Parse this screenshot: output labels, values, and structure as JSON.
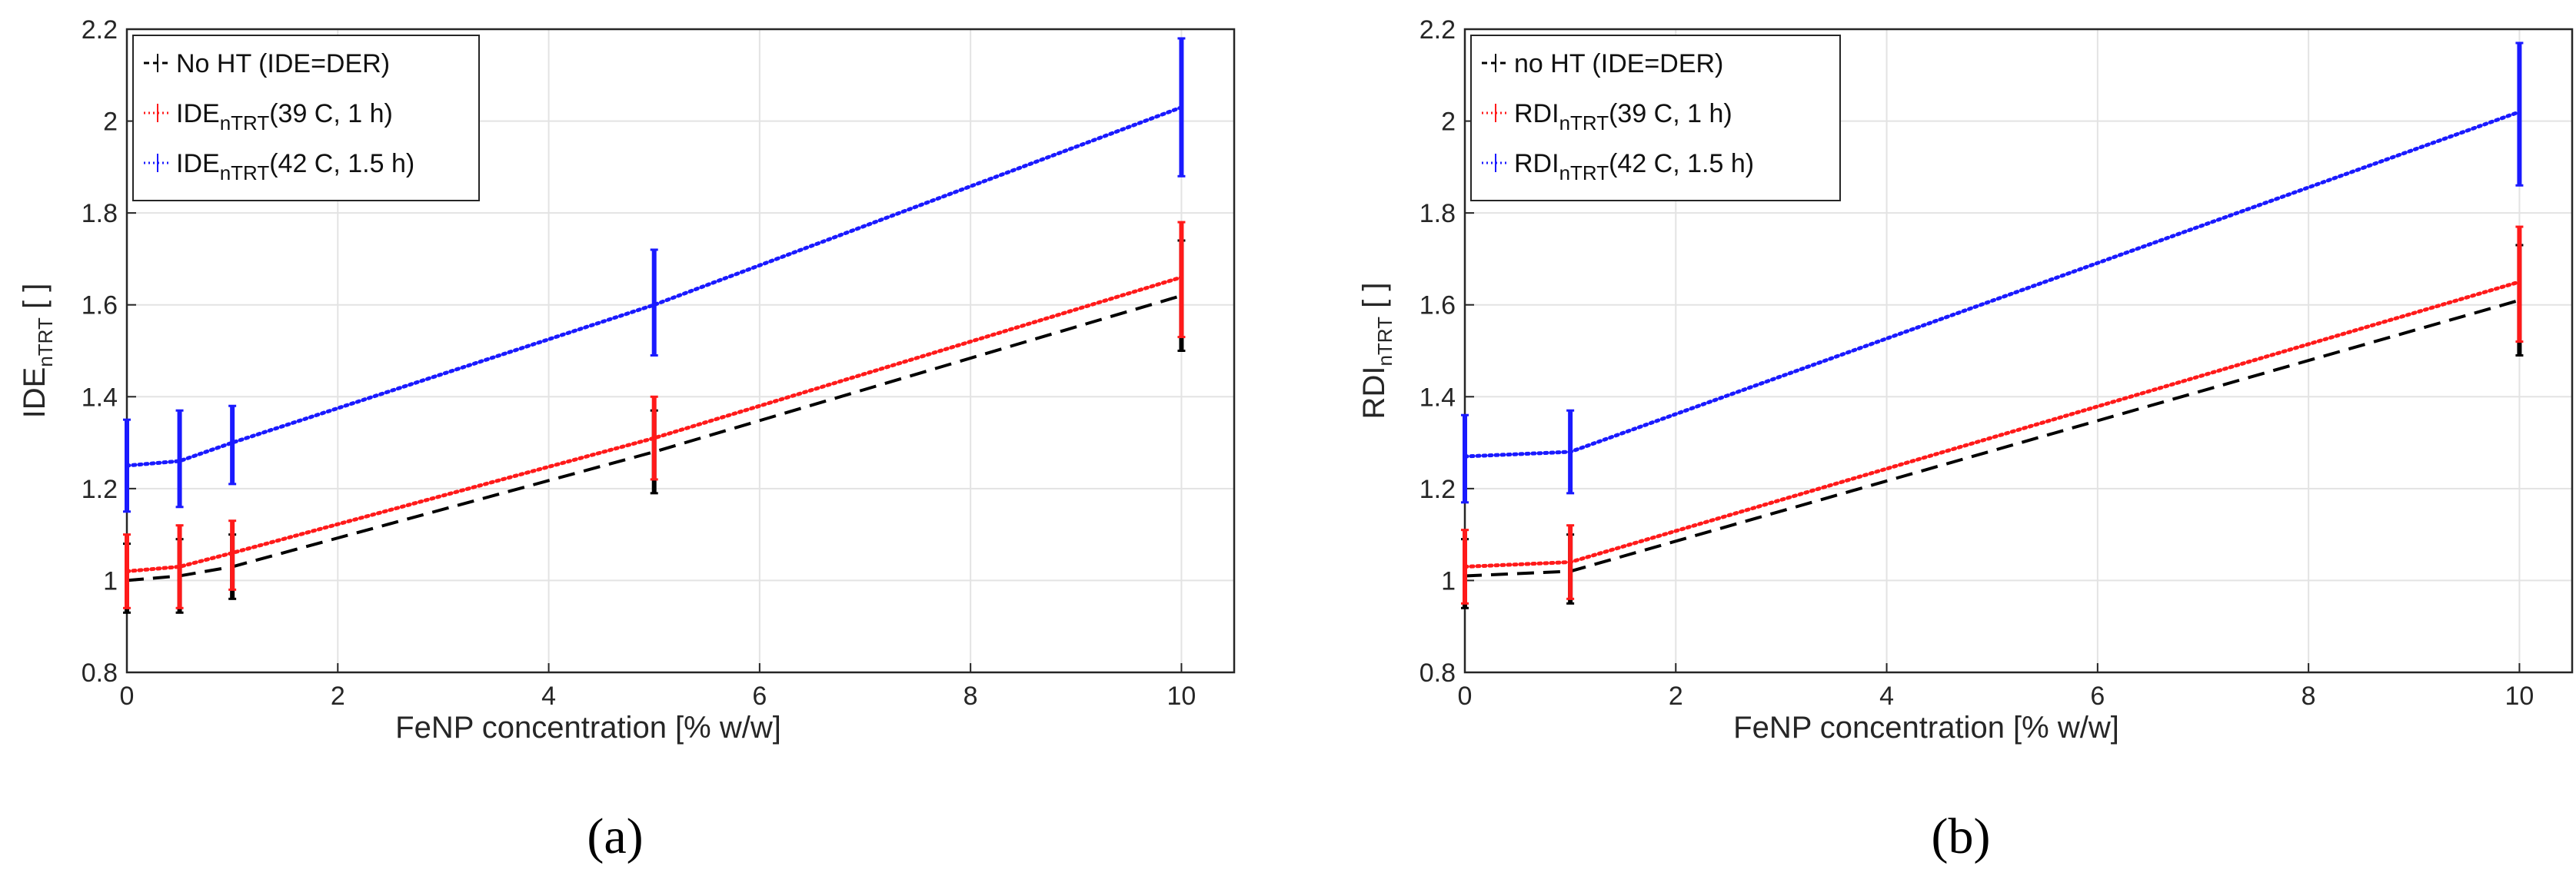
{
  "chart_data": [
    {
      "type": "line",
      "panel_label": "(a)",
      "xlabel": "FeNP concentration [% w/w]",
      "ylabel": {
        "base": "IDE",
        "sub": "nTRT",
        "suffix": " [ ]"
      },
      "xlim": [
        0,
        10.5
      ],
      "ylim": [
        0.8,
        2.2
      ],
      "xticks": [
        "0",
        "2",
        "4",
        "6",
        "8",
        "10"
      ],
      "yticks": [
        "0.8",
        "1",
        "1.2",
        "1.4",
        "1.6",
        "1.8",
        "2",
        "2.2"
      ],
      "grid": true,
      "legend_position": "top-left",
      "series": [
        {
          "name": "No HT (IDE=DER)",
          "legend": {
            "base": "No HT (IDE=DER)",
            "sub": "",
            "suffix": ""
          },
          "color": "#000000",
          "style": "dashed",
          "x": [
            0,
            0.5,
            1,
            5,
            10
          ],
          "y": [
            1.0,
            1.01,
            1.03,
            1.28,
            1.62
          ],
          "err_low": [
            0.93,
            0.93,
            0.96,
            1.19,
            1.5
          ],
          "err_high": [
            1.08,
            1.09,
            1.1,
            1.37,
            1.74
          ]
        },
        {
          "name": "IDE nTRT (39 C, 1 h)",
          "legend": {
            "base": "IDE",
            "sub": "nTRT",
            "suffix": "(39 C, 1 h)"
          },
          "color": "#ff1a1a",
          "style": "dotted",
          "x": [
            0,
            0.5,
            1,
            5,
            10
          ],
          "y": [
            1.02,
            1.03,
            1.06,
            1.31,
            1.66
          ],
          "err_low": [
            0.94,
            0.94,
            0.98,
            1.22,
            1.53
          ],
          "err_high": [
            1.1,
            1.12,
            1.13,
            1.4,
            1.78
          ]
        },
        {
          "name": "IDE nTRT (42 C, 1.5 h)",
          "legend": {
            "base": "IDE",
            "sub": "nTRT",
            "suffix": "(42 C, 1.5 h)"
          },
          "color": "#1a1aff",
          "style": "dotted",
          "x": [
            0,
            0.5,
            1,
            5,
            10
          ],
          "y": [
            1.25,
            1.26,
            1.3,
            1.6,
            2.03
          ],
          "err_low": [
            1.15,
            1.16,
            1.21,
            1.49,
            1.88
          ],
          "err_high": [
            1.35,
            1.37,
            1.38,
            1.72,
            2.18
          ]
        }
      ]
    },
    {
      "type": "line",
      "panel_label": "(b)",
      "xlabel": "FeNP concentration [% w/w]",
      "ylabel": {
        "base": "RDI",
        "sub": "nTRT",
        "suffix": " [ ]"
      },
      "xlim": [
        0,
        10.5
      ],
      "ylim": [
        0.8,
        2.2
      ],
      "xticks": [
        "0",
        "2",
        "4",
        "6",
        "8",
        "10"
      ],
      "yticks": [
        "0.8",
        "1",
        "1.2",
        "1.4",
        "1.6",
        "1.8",
        "2",
        "2.2"
      ],
      "grid": true,
      "legend_position": "top-left",
      "series": [
        {
          "name": "no HT (IDE=DER)",
          "legend": {
            "base": "no HT (IDE=DER)",
            "sub": "",
            "suffix": ""
          },
          "color": "#000000",
          "style": "dashed",
          "x": [
            0,
            1,
            10
          ],
          "y": [
            1.01,
            1.02,
            1.61
          ],
          "err_low": [
            0.94,
            0.95,
            1.49
          ],
          "err_high": [
            1.09,
            1.1,
            1.73
          ]
        },
        {
          "name": "RDI nTRT (39 C, 1 h)",
          "legend": {
            "base": "RDI",
            "sub": "nTRT",
            "suffix": "(39 C, 1 h)"
          },
          "color": "#ff1a1a",
          "style": "dotted",
          "x": [
            0,
            1,
            10
          ],
          "y": [
            1.03,
            1.04,
            1.65
          ],
          "err_low": [
            0.95,
            0.96,
            1.52
          ],
          "err_high": [
            1.11,
            1.12,
            1.77
          ]
        },
        {
          "name": "RDI nTRT (42 C, 1.5 h)",
          "legend": {
            "base": "RDI",
            "sub": "nTRT",
            "suffix": "(42 C, 1.5 h)"
          },
          "color": "#1a1aff",
          "style": "dotted",
          "x": [
            0,
            1,
            10
          ],
          "y": [
            1.27,
            1.28,
            2.02
          ],
          "err_low": [
            1.17,
            1.19,
            1.86
          ],
          "err_high": [
            1.36,
            1.37,
            2.17
          ]
        }
      ]
    }
  ]
}
